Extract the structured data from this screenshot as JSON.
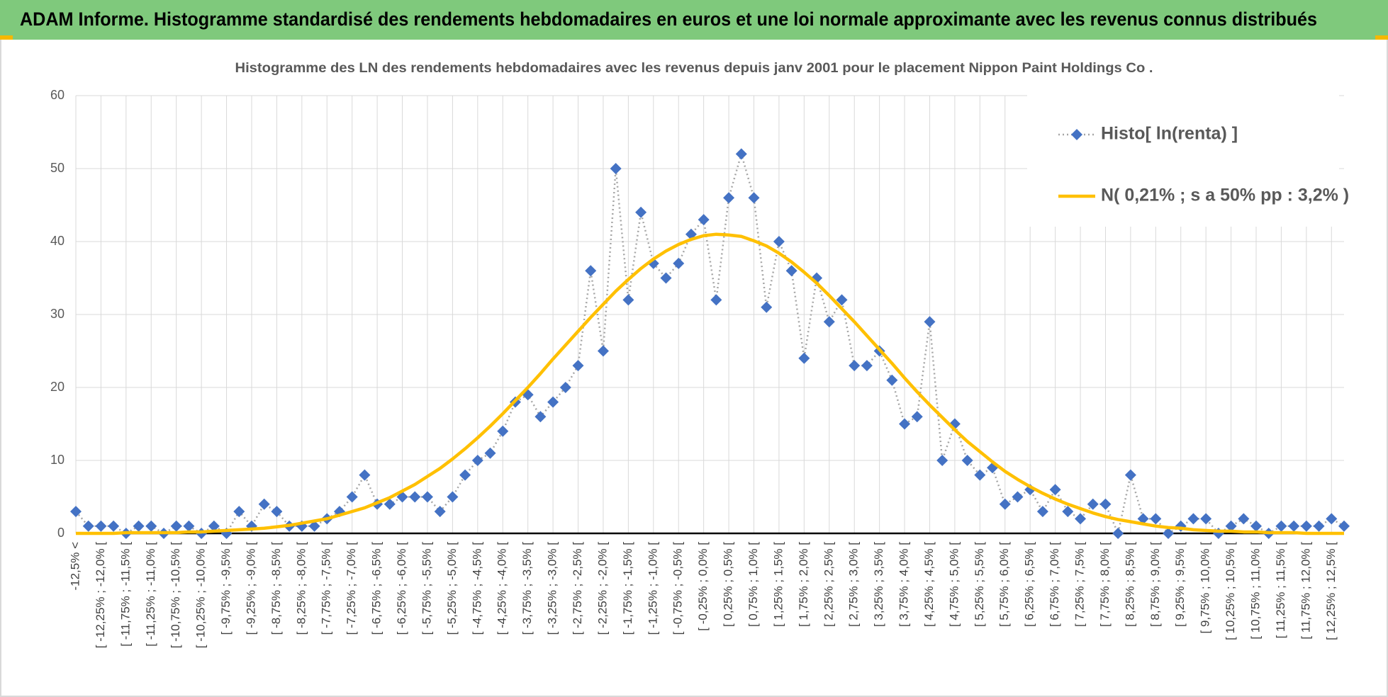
{
  "header": {
    "title": "ADAM Informe. Histogramme standardisé des rendements hebdomadaires en euros et une loi normale approximante avec les revenus connus distribués"
  },
  "chart_data": {
    "type": "line",
    "title": "Histogramme des LN des rendements hebdomadaires avec les revenus depuis janv 2001 pour le placement Nippon Paint Holdings Co .",
    "categories": [
      "-12,5% <",
      null,
      "[ -12,25% ; -12,0% [",
      null,
      "[ -11,75% ; -11,5% [",
      null,
      "[ -11,25% ; -11,0% [",
      null,
      "[ -10,75% ; -10,5% [",
      null,
      "[ -10,25% ; -10,0% [",
      null,
      "[ -9,75% ; -9,5% [",
      null,
      "[ -9,25% ; -9,0% [",
      null,
      "[ -8,75% ; -8,5% [",
      null,
      "[ -8,25% ; -8,0% [",
      null,
      "[ -7,75% ; -7,5% [",
      null,
      "[ -7,25% ; -7,0% [",
      null,
      "[ -6,75% ; -6,5% [",
      null,
      "[ -6,25% ; -6,0% [",
      null,
      "[ -5,75% ; -5,5% [",
      null,
      "[ -5,25% ; -5,0% [",
      null,
      "[ -4,75% ; -4,5% [",
      null,
      "[ -4,25% ; -4,0% [",
      null,
      "[ -3,75% ; -3,5% [",
      null,
      "[ -3,25% ; -3,0% [",
      null,
      "[ -2,75% ; -2,5% [",
      null,
      "[ -2,25% ; -2,0% [",
      null,
      "[ -1,75% ; -1,5% [",
      null,
      "[ -1,25% ; -1,0% [",
      null,
      "[ -0,75% ; -0,5% [",
      null,
      "[ -0,25% ; 0,0% [",
      null,
      "[ 0,25% ; 0,5% [",
      null,
      "[ 0,75% ; 1,0% [",
      null,
      "[ 1,25% ; 1,5% [",
      null,
      "[ 1,75% ; 2,0% [",
      null,
      "[ 2,25% ; 2,5% [",
      null,
      "[ 2,75% ; 3,0% [",
      null,
      "[ 3,25% ; 3,5% [",
      null,
      "[ 3,75% ; 4,0% [",
      null,
      "[ 4,25% ; 4,5% [",
      null,
      "[ 4,75% ; 5,0% [",
      null,
      "[ 5,25% ; 5,5% [",
      null,
      "[ 5,75% ; 6,0% [",
      null,
      "[ 6,25% ; 6,5% [",
      null,
      "[ 6,75% ; 7,0% [",
      null,
      "[ 7,25% ; 7,5% [",
      null,
      "[ 7,75% ; 8,0% [",
      null,
      "[ 8,25% ; 8,5% [",
      null,
      "[ 8,75% ; 9,0% [",
      null,
      "[ 9,25% ; 9,5% [",
      null,
      "[ 9,75% ; 10,0% [",
      null,
      "[ 10,25% ; 10,5% [",
      null,
      "[ 10,75% ; 11,0% [",
      null,
      "[ 11,25% ; 11,5% [",
      null,
      "[ 11,75% ; 12,0% [",
      null,
      "[ 12,25% ; 12,5% [",
      null
    ],
    "series": [
      {
        "name": "Histo[ ln(renta) ]",
        "color": "#4472c4",
        "marker": "diamond",
        "line_color": "#a6a6a6",
        "line_style": "dotted",
        "values": [
          3,
          1,
          1,
          1,
          0,
          1,
          1,
          0,
          1,
          1,
          0,
          1,
          0,
          3,
          1,
          4,
          3,
          1,
          1,
          1,
          2,
          3,
          5,
          8,
          4,
          4,
          5,
          5,
          5,
          3,
          5,
          8,
          10,
          11,
          14,
          18,
          19,
          16,
          18,
          20,
          23,
          36,
          25,
          50,
          32,
          44,
          37,
          35,
          37,
          41,
          43,
          32,
          46,
          52,
          46,
          31,
          40,
          36,
          24,
          35,
          29,
          32,
          23,
          23,
          25,
          21,
          15,
          16,
          29,
          10,
          15,
          10,
          8,
          9,
          4,
          5,
          6,
          3,
          6,
          3,
          2,
          4,
          4,
          0,
          8,
          2,
          2,
          0,
          1,
          2,
          2,
          0,
          1,
          2,
          1,
          0,
          1,
          1,
          1,
          1,
          2,
          1
        ]
      },
      {
        "name": "N( 0,21% ; s a 50% pp : 3,2% )",
        "color": "#ffc000",
        "marker": "none",
        "line_color": "#ffc000",
        "line_style": "solid",
        "values": [
          0,
          0,
          0,
          0,
          0.1,
          0.1,
          0.1,
          0.1,
          0.1,
          0.2,
          0.2,
          0.3,
          0.4,
          0.5,
          0.6,
          0.7,
          0.9,
          1.1,
          1.4,
          1.7,
          2.0,
          2.5,
          3.0,
          3.5,
          4.2,
          4.9,
          5.8,
          6.7,
          7.8,
          8.9,
          10.2,
          11.6,
          13.1,
          14.7,
          16.4,
          18.2,
          20.0,
          21.9,
          23.9,
          25.8,
          27.7,
          29.6,
          31.4,
          33.2,
          34.8,
          36.3,
          37.6,
          38.7,
          39.6,
          40.3,
          40.8,
          41.0,
          40.9,
          40.7,
          40.1,
          39.4,
          38.4,
          37.2,
          35.8,
          34.3,
          32.6,
          30.8,
          29.0,
          27.1,
          25.2,
          23.3,
          21.3,
          19.4,
          17.6,
          15.9,
          14.2,
          12.6,
          11.2,
          9.8,
          8.5,
          7.4,
          6.4,
          5.5,
          4.7,
          4.0,
          3.4,
          2.8,
          2.3,
          1.9,
          1.6,
          1.3,
          1.0,
          0.8,
          0.7,
          0.5,
          0.4,
          0.3,
          0.3,
          0.2,
          0.2,
          0.1,
          0.1,
          0.1,
          0,
          0,
          0,
          0
        ]
      }
    ],
    "ylim": [
      0,
      60
    ],
    "yticks": [
      0,
      10,
      20,
      30,
      40,
      50,
      60
    ],
    "grid": true,
    "legend": "upper right"
  }
}
